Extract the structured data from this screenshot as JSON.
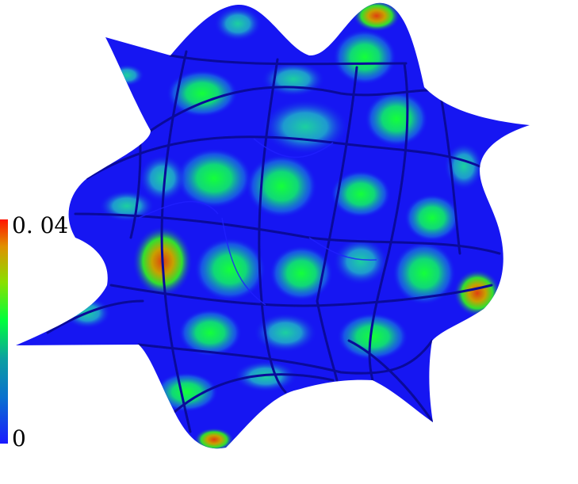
{
  "colorbar": {
    "max_label": "0. 04",
    "min_label": "0",
    "colors": [
      "#1a1aff",
      "#0a6fd0",
      "#0ca0a0",
      "#00ff3c",
      "#8ae000",
      "#e09000",
      "#ff1400"
    ]
  },
  "surface": {
    "base_color": "#1616f2",
    "seam_color": "#0a0a9a",
    "patch_colors": [
      "#14e070",
      "#1cc8a0",
      "#2a9ad6"
    ],
    "hot_color": "#e05a10"
  }
}
